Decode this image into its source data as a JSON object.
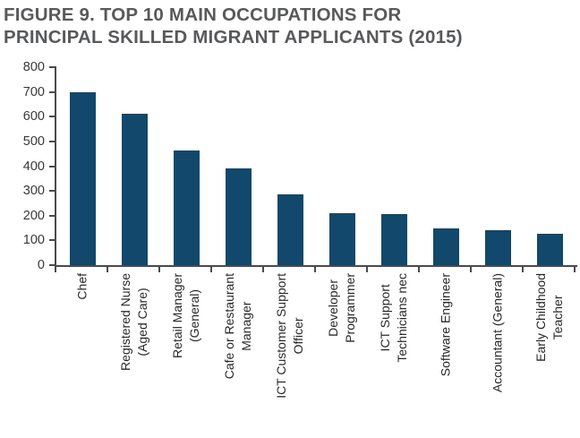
{
  "figure": {
    "title": "FIGURE 9. TOP 10 MAIN OCCUPATIONS FOR\nPRINCIPAL SKILLED MIGRANT APPLICANTS (2015)"
  },
  "colors": {
    "bar": "#11486B",
    "title_text": "#58595B",
    "axis_line": "#4A4A4C",
    "tick_label_text": "#39393B",
    "category_label_text": "#28282A",
    "background": "#FFFFFF"
  },
  "chart_data": {
    "type": "bar",
    "title": "FIGURE 9. TOP 10 MAIN OCCUPATIONS FOR PRINCIPAL SKILLED MIGRANT APPLICANTS (2015)",
    "categories": [
      "Chef",
      "Registered Nurse (Aged Care)",
      "Retail Manager (General)",
      "Cafe or Restaurant Manager",
      "ICT Customer Support Officer",
      "Developer Programmer",
      "ICT Support Technicians nec",
      "Software Engineer",
      "Accountant (General)",
      "Early Childhood Teacher"
    ],
    "categories_display": [
      "Chef",
      "Registered Nurse\n(Aged Care)",
      "Retail Manager\n(General)",
      "Cafe or Restaurant\nManager",
      "ICT Customer Support\nOfficer",
      "Developer\nProgrammer",
      "ICT Support\nTechnicians nec",
      "Software Engineer",
      "Accountant (General)",
      "Early Childhood\nTeacher"
    ],
    "values": [
      700,
      610,
      465,
      390,
      285,
      210,
      205,
      150,
      140,
      125
    ],
    "xlabel": "",
    "ylabel": "",
    "ylim": [
      0,
      800
    ],
    "y_ticks": [
      0,
      100,
      200,
      300,
      400,
      500,
      600,
      700,
      800
    ],
    "x_tick_rotation_degrees": 90,
    "grid": false,
    "legend": "none",
    "bar_color": "#11486B"
  }
}
